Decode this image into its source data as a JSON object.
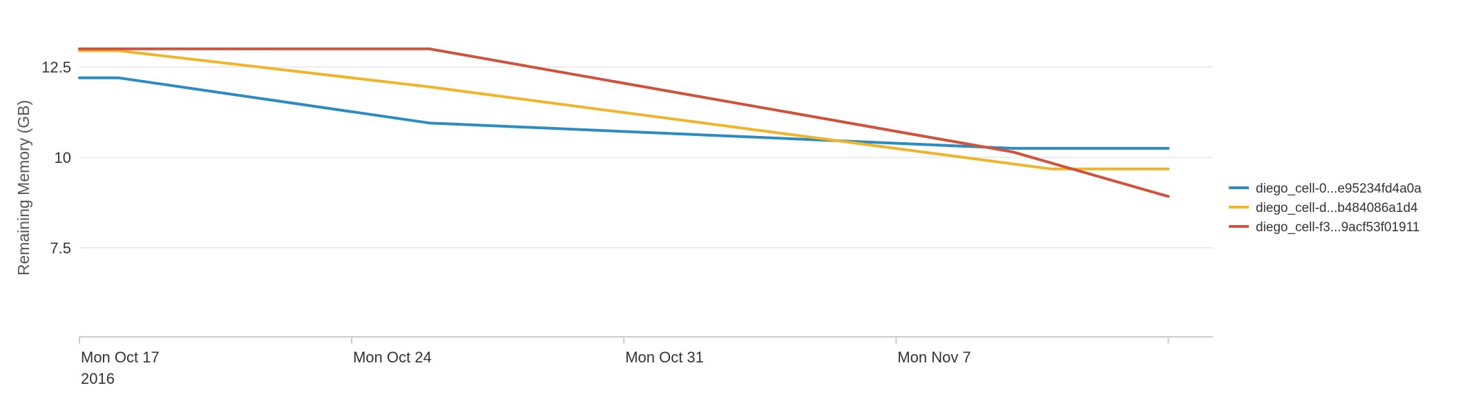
{
  "chart_data": {
    "type": "line",
    "ylabel": "Remaining Memory (GB)",
    "xlabel": "",
    "title": "",
    "ylim": [
      5,
      13.8
    ],
    "yticks": [
      7.5,
      10,
      12.5
    ],
    "xticks": [
      {
        "date": "2016-10-17",
        "label": "Mon Oct 17",
        "sublabel": "2016"
      },
      {
        "date": "2016-10-24",
        "label": "Mon Oct 24",
        "sublabel": ""
      },
      {
        "date": "2016-10-31",
        "label": "Mon Oct 31",
        "sublabel": ""
      },
      {
        "date": "2016-11-07",
        "label": "Mon Nov 7",
        "sublabel": ""
      },
      {
        "date": "2016-11-14",
        "label": "",
        "sublabel": ""
      }
    ],
    "xlim": [
      "2016-10-17",
      "2016-11-15"
    ],
    "grid": true,
    "legend_position": "right",
    "series": [
      {
        "name": "diego_cell-0...e95234fd4a0a",
        "color": "#2b8cc4",
        "points": [
          [
            "2016-10-17",
            12.2
          ],
          [
            "2016-10-18",
            12.2
          ],
          [
            "2016-10-26",
            10.95
          ],
          [
            "2016-11-10",
            10.25
          ],
          [
            "2016-11-14",
            10.25
          ]
        ]
      },
      {
        "name": "diego_cell-d...b484086a1d4",
        "color": "#f0b429",
        "points": [
          [
            "2016-10-17",
            12.95
          ],
          [
            "2016-10-18",
            12.95
          ],
          [
            "2016-10-26",
            11.95
          ],
          [
            "2016-11-11",
            9.68
          ],
          [
            "2016-11-14",
            9.68
          ]
        ]
      },
      {
        "name": "diego_cell-f3...9acf53f01911",
        "color": "#d1513a",
        "points": [
          [
            "2016-10-17",
            13.0
          ],
          [
            "2016-10-26",
            13.0
          ],
          [
            "2016-11-10",
            10.15
          ],
          [
            "2016-11-14",
            8.92
          ]
        ]
      }
    ]
  }
}
